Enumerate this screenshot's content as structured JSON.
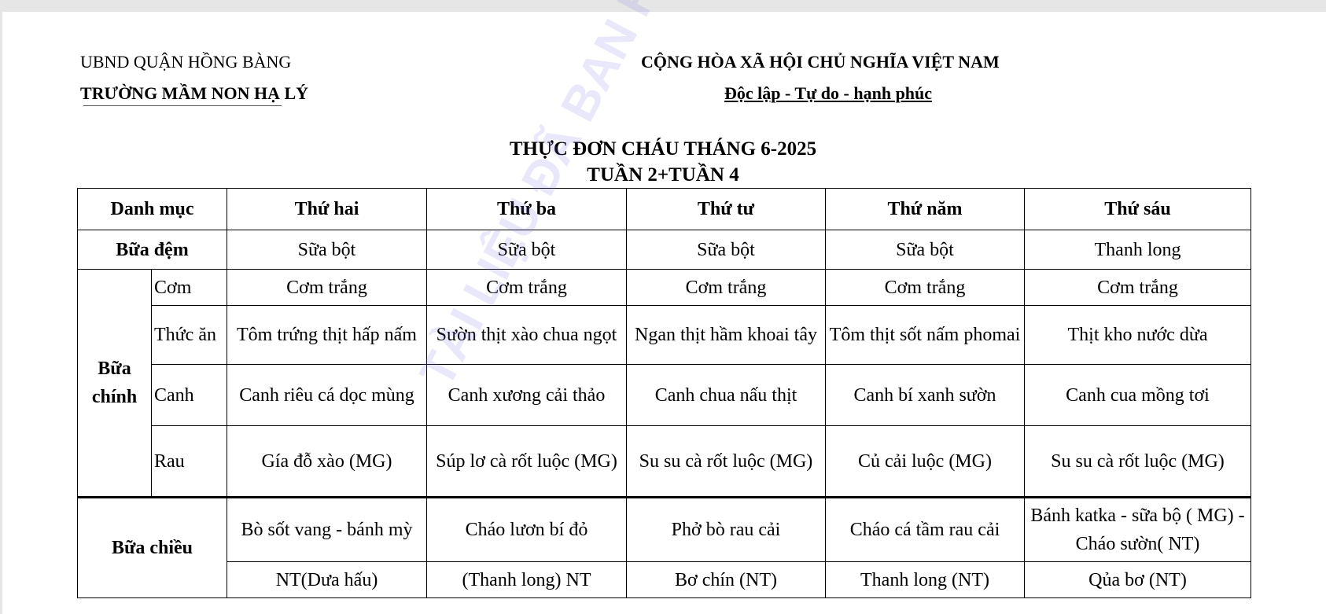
{
  "header": {
    "left_line1": "UBND QUẬN HỒNG BÀNG",
    "left_line2": "TRƯỜNG MẦM NON HẠ LÝ",
    "right_line1": "CỘNG HÒA XÃ HỘI CHỦ NGHĨA VIỆT NAM",
    "right_line2": "Độc lập - Tự do - hạnh phúc"
  },
  "title": {
    "line1": "THỰC ĐƠN CHÁU THÁNG 6-2025",
    "line2": "TUẦN 2+TUẦN 4"
  },
  "watermark": "TÀI LIỆU ĐÃ BAN HÀNH",
  "table": {
    "headers": [
      "Danh mục",
      "Thứ hai",
      "Thứ ba",
      "Thứ tư",
      "Thứ năm",
      "Thứ sáu"
    ],
    "bua_dem": {
      "label": "Bữa đệm",
      "cells": [
        "Sữa bột",
        "Sữa bột",
        "Sữa bột",
        "Sữa bột",
        "Thanh long"
      ]
    },
    "bua_chinh": {
      "label": "Bữa chính",
      "rows": [
        {
          "label": "Cơm",
          "cells": [
            "Cơm trắng",
            "Cơm trắng",
            "Cơm trắng",
            "Cơm trắng",
            "Cơm trắng"
          ]
        },
        {
          "label": "Thức ăn",
          "cells": [
            "Tôm trứng thịt hấp nấm",
            "Sườn thịt xào chua ngọt",
            "Ngan thịt hầm khoai tây",
            "Tôm thịt sốt nấm phomai",
            "Thịt kho nước dừa"
          ]
        },
        {
          "label": "Canh",
          "cells": [
            "Canh riêu cá dọc mùng",
            "Canh xương cải thảo",
            "Canh chua nấu thịt",
            "Canh bí xanh sườn",
            "Canh cua mồng tơi"
          ]
        },
        {
          "label": "Rau",
          "cells": [
            "Gía đỗ xào (MG)",
            "Súp lơ cà rốt luộc (MG)",
            "Su su cà rốt luộc (MG)",
            "Củ cải luộc (MG)",
            "Su su cà rốt luộc (MG)"
          ]
        }
      ]
    },
    "bua_chieu": {
      "label": "Bữa chiều",
      "row1": [
        "Bò sốt vang - bánh mỳ",
        "Cháo lươn bí đỏ",
        "Phở bò rau cải",
        "Cháo cá tầm rau cải",
        "Bánh katka - sữa bộ ( MG) - Cháo sườn( NT)"
      ],
      "row2": [
        "NT(Dưa hấu)",
        "(Thanh long) NT",
        "Bơ chín (NT)",
        "Thanh long (NT)",
        "Qủa bơ (NT)"
      ]
    }
  }
}
